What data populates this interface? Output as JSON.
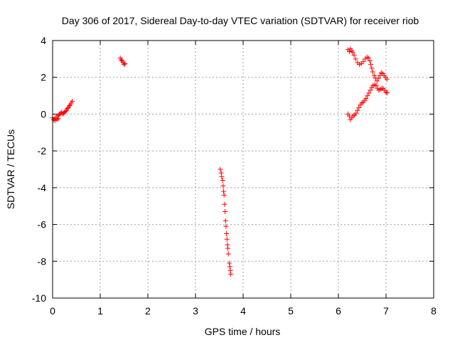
{
  "chart_data": {
    "type": "scatter",
    "title": "Day 306 of 2017, Sidereal Day-to-day VTEC variation (SDTVAR) for receiver riob",
    "xlabel": "GPS time / hours",
    "ylabel": "SDTVAR / TECUs",
    "xlim": [
      0,
      8
    ],
    "ylim": [
      -10,
      4
    ],
    "x_ticks": [
      0,
      1,
      2,
      3,
      4,
      5,
      6,
      7,
      8
    ],
    "y_ticks": [
      -10,
      -8,
      -6,
      -4,
      -2,
      0,
      2,
      4
    ],
    "x_tick_labels": [
      "0",
      "1",
      "2",
      "3",
      "4",
      "5",
      "6",
      "7",
      "8"
    ],
    "y_tick_labels": [
      "-10",
      "-8",
      "-6",
      "-4",
      "-2",
      "0",
      "2",
      "4"
    ],
    "grid": true,
    "marker": "+",
    "color": "#ff0000",
    "series": [
      {
        "points": [
          [
            0.0,
            -0.2
          ],
          [
            0.02,
            -0.3
          ],
          [
            0.04,
            -0.25
          ],
          [
            0.05,
            -0.35
          ],
          [
            0.07,
            -0.2
          ],
          [
            0.09,
            -0.3
          ],
          [
            0.1,
            -0.1
          ],
          [
            0.12,
            -0.25
          ],
          [
            0.13,
            -0.05
          ],
          [
            0.15,
            0.0
          ],
          [
            0.17,
            0.05
          ],
          [
            0.19,
            0.1
          ],
          [
            0.21,
            0.0
          ],
          [
            0.23,
            0.05
          ],
          [
            0.25,
            0.1
          ],
          [
            0.27,
            0.15
          ],
          [
            0.29,
            0.2
          ],
          [
            0.31,
            0.3
          ],
          [
            0.33,
            0.35
          ],
          [
            0.35,
            0.45
          ],
          [
            0.37,
            0.5
          ],
          [
            0.39,
            0.6
          ],
          [
            0.41,
            0.7
          ],
          [
            1.42,
            3.05
          ],
          [
            1.44,
            2.95
          ],
          [
            1.46,
            2.9
          ],
          [
            1.48,
            2.8
          ],
          [
            1.5,
            2.7
          ],
          [
            1.52,
            2.75
          ],
          [
            3.52,
            -3.0
          ],
          [
            3.54,
            -3.2
          ],
          [
            3.55,
            -3.4
          ],
          [
            3.57,
            -3.6
          ],
          [
            3.58,
            -3.9
          ],
          [
            3.59,
            -4.2
          ],
          [
            3.6,
            -4.4
          ],
          [
            3.61,
            -4.9
          ],
          [
            3.62,
            -5.3
          ],
          [
            3.63,
            -5.8
          ],
          [
            3.64,
            -6.1
          ],
          [
            3.65,
            -6.5
          ],
          [
            3.66,
            -6.8
          ],
          [
            3.67,
            -7.1
          ],
          [
            3.68,
            -7.3
          ],
          [
            3.69,
            -7.6
          ],
          [
            3.71,
            -8.1
          ],
          [
            3.72,
            -8.3
          ],
          [
            3.73,
            -8.5
          ],
          [
            3.74,
            -8.7
          ],
          [
            6.2,
            3.5
          ],
          [
            6.23,
            3.4
          ],
          [
            6.25,
            3.55
          ],
          [
            6.28,
            3.45
          ],
          [
            6.3,
            3.35
          ],
          [
            6.33,
            3.2
          ],
          [
            6.36,
            3.0
          ],
          [
            6.4,
            2.8
          ],
          [
            6.44,
            2.7
          ],
          [
            6.48,
            2.75
          ],
          [
            6.52,
            2.85
          ],
          [
            6.56,
            3.0
          ],
          [
            6.6,
            3.1
          ],
          [
            6.63,
            3.05
          ],
          [
            6.66,
            2.9
          ],
          [
            6.68,
            2.7
          ],
          [
            6.7,
            2.5
          ],
          [
            6.72,
            2.3
          ],
          [
            6.75,
            2.1
          ],
          [
            6.78,
            1.95
          ],
          [
            6.81,
            1.8
          ],
          [
            6.84,
            1.95
          ],
          [
            6.87,
            2.1
          ],
          [
            6.9,
            2.25
          ],
          [
            6.93,
            2.2
          ],
          [
            6.96,
            2.1
          ],
          [
            6.99,
            2.0
          ],
          [
            7.02,
            1.9
          ],
          [
            6.2,
            0.0
          ],
          [
            6.23,
            -0.1
          ],
          [
            6.25,
            -0.3
          ],
          [
            6.28,
            -0.2
          ],
          [
            6.31,
            -0.1
          ],
          [
            6.34,
            -0.05
          ],
          [
            6.37,
            0.05
          ],
          [
            6.4,
            0.2
          ],
          [
            6.43,
            0.35
          ],
          [
            6.46,
            0.5
          ],
          [
            6.49,
            0.6
          ],
          [
            6.52,
            0.65
          ],
          [
            6.55,
            0.75
          ],
          [
            6.58,
            0.85
          ],
          [
            6.61,
            1.0
          ],
          [
            6.64,
            1.15
          ],
          [
            6.67,
            1.3
          ],
          [
            6.7,
            1.45
          ],
          [
            6.73,
            1.55
          ],
          [
            6.76,
            1.6
          ],
          [
            6.79,
            1.55
          ],
          [
            6.82,
            1.4
          ],
          [
            6.85,
            1.3
          ],
          [
            6.88,
            1.35
          ],
          [
            6.91,
            1.4
          ],
          [
            6.94,
            1.4
          ],
          [
            6.97,
            1.3
          ],
          [
            7.0,
            1.2
          ],
          [
            7.02,
            1.15
          ]
        ]
      }
    ]
  }
}
